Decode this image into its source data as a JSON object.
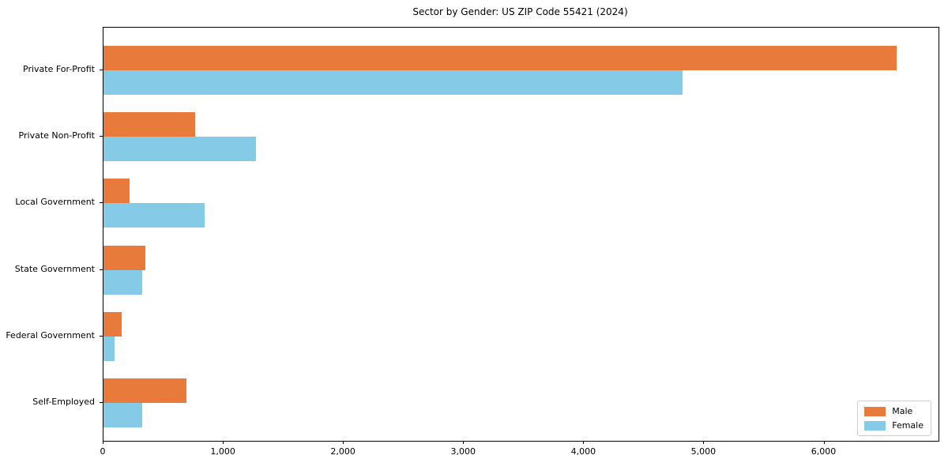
{
  "chart_data": {
    "type": "bar",
    "orientation": "horizontal",
    "title": "Sector by Gender: US ZIP Code 55421 (2024)",
    "xlabel": "",
    "ylabel": "",
    "categories": [
      "Private For-Profit",
      "Private Non-Profit",
      "Local Government",
      "State Government",
      "Federal Government",
      "Self-Employed"
    ],
    "series": [
      {
        "name": "Male",
        "color": "#e87a3c",
        "values": [
          6600,
          760,
          220,
          350,
          150,
          690
        ]
      },
      {
        "name": "Female",
        "color": "#85cbe8",
        "values": [
          4820,
          1270,
          840,
          320,
          90,
          320
        ]
      }
    ],
    "xlim": [
      0,
      6950
    ],
    "xticks": [
      0,
      1000,
      2000,
      3000,
      4000,
      5000,
      6000
    ],
    "xtick_labels": [
      "0",
      "1,000",
      "2,000",
      "3,000",
      "4,000",
      "5,000",
      "6,000"
    ],
    "grid": false,
    "legend": {
      "position": "lower right",
      "entries": [
        "Male",
        "Female"
      ]
    }
  }
}
